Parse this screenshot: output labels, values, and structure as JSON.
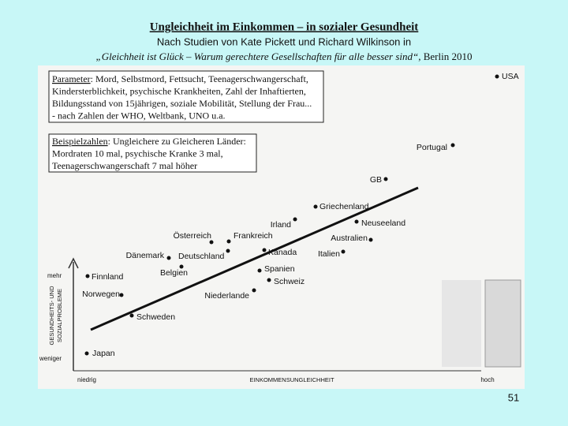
{
  "header": {
    "title": "Ungleichheit im Einkommen – in sozialer Gesundheit",
    "subtitle": "Nach Studien von Kate Pickett und Richard Wilkinson in",
    "source_title": "„Gleichheit ist Glück – Warum gerechtere Gesellschaften für alle besser sind“",
    "source_rest": ", Berlin 2010"
  },
  "boxes": [
    {
      "heading": "Parameter",
      "lines": [
        ": Mord, Selbstmord, Fettsucht, Teenagerschwangerschaft,",
        "Kindersterblichkeit, psychische Krankheiten, Zahl der Inhaftierten,",
        "Bildungsstand von 15jährigen, soziale Mobilität, Stellung der Frau...",
        "- nach Zahlen der WHO, Weltbank, UNO u.a."
      ]
    },
    {
      "heading": "Beispielzahlen",
      "lines": [
        ": Ungleichere zu Gleicheren Länder:",
        "Mordraten 10 mal, psychische Kranke 3 mal,",
        "Teenagerschwangerschaft 7 mal höher"
      ]
    }
  ],
  "chart": {
    "y_axis_label": [
      "GESUNDHEITS- UND",
      "SOZIALPROBLEME"
    ],
    "y_high": "mehr",
    "y_low": "weniger",
    "x_axis_label": "EINKOMMENSUNGLEICHHEIT",
    "x_low": "niedrig",
    "x_high": "hoch",
    "countries": [
      "USA",
      "Portugal",
      "GB",
      "Griechenland",
      "Irland",
      "Neuseeland",
      "Österreich",
      "Frankreich",
      "Australien",
      "Dänemark",
      "Deutschland",
      "Kanada",
      "Italien",
      "Finnland",
      "Belgien",
      "Spanien",
      "Schweiz",
      "Niederlande",
      "Norwegen",
      "Schweden",
      "Japan"
    ]
  },
  "page_number": "51"
}
